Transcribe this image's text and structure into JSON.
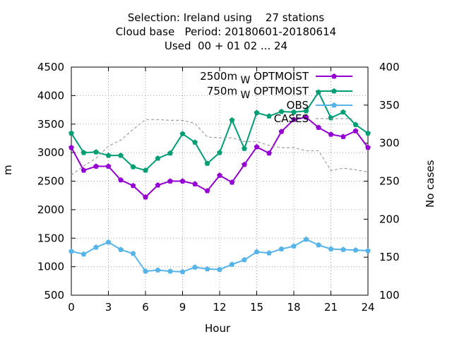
{
  "title_lines": [
    "Selection: Ireland using    27 stations",
    "Cloud base   Period: 20180601-20180614",
    "Used  00 + 01 02 ... 24"
  ],
  "chart_data": {
    "type": "line",
    "xlabel": "Hour",
    "ylabel": "m",
    "y2label": "No cases",
    "xlim": [
      0,
      24
    ],
    "ylim": [
      500,
      4500
    ],
    "y2lim": [
      100,
      400
    ],
    "xticks": [
      "0",
      "3",
      "6",
      "9",
      "12",
      "15",
      "18",
      "21",
      "24"
    ],
    "yticks": [
      "500",
      "1000",
      "1500",
      "2000",
      "2500",
      "3000",
      "3500",
      "4000",
      "4500"
    ],
    "y2ticks": [
      "100",
      "150",
      "200",
      "250",
      "300",
      "350",
      "400"
    ],
    "grid": true,
    "legend_position": "top-right",
    "x": [
      0,
      1,
      2,
      3,
      4,
      5,
      6,
      7,
      8,
      9,
      10,
      11,
      12,
      13,
      14,
      15,
      16,
      17,
      18,
      19,
      20,
      21,
      22,
      23,
      24
    ],
    "series": [
      {
        "name": "2500m",
        "legend_sub": "W",
        "legend_suffix": "OPTMOIST",
        "color": "#9400d3",
        "axis": "y",
        "values": [
          3090,
          2690,
          2760,
          2760,
          2520,
          2420,
          2220,
          2430,
          2500,
          2500,
          2450,
          2330,
          2600,
          2480,
          2790,
          3100,
          2990,
          3370,
          3580,
          3620,
          3440,
          3320,
          3280,
          3380,
          3090
        ]
      },
      {
        "name": "750m",
        "legend_sub": "W",
        "legend_suffix": "OPTMOIST",
        "color": "#009e73",
        "axis": "y",
        "values": [
          3340,
          3000,
          3010,
          2950,
          2950,
          2750,
          2690,
          2900,
          2990,
          3330,
          3180,
          2810,
          3000,
          3570,
          3070,
          3700,
          3640,
          3720,
          3710,
          3730,
          4060,
          3610,
          3710,
          3490,
          3340
        ]
      },
      {
        "name": "OBS",
        "color": "#56b4e9",
        "axis": "y",
        "values": [
          1270,
          1220,
          1340,
          1430,
          1300,
          1230,
          920,
          940,
          920,
          910,
          990,
          960,
          950,
          1040,
          1120,
          1260,
          1240,
          1310,
          1360,
          1480,
          1380,
          1310,
          1300,
          1290,
          1280
        ]
      },
      {
        "name": "CASES",
        "color": "#a0a0a0",
        "axis": "y2",
        "dashed": true,
        "values": [
          258,
          270,
          280,
          296,
          304,
          318,
          331,
          331,
          330,
          330,
          326,
          308,
          307,
          307,
          302,
          302,
          297,
          294,
          294,
          290,
          290,
          264,
          267,
          265,
          262
        ]
      }
    ]
  }
}
